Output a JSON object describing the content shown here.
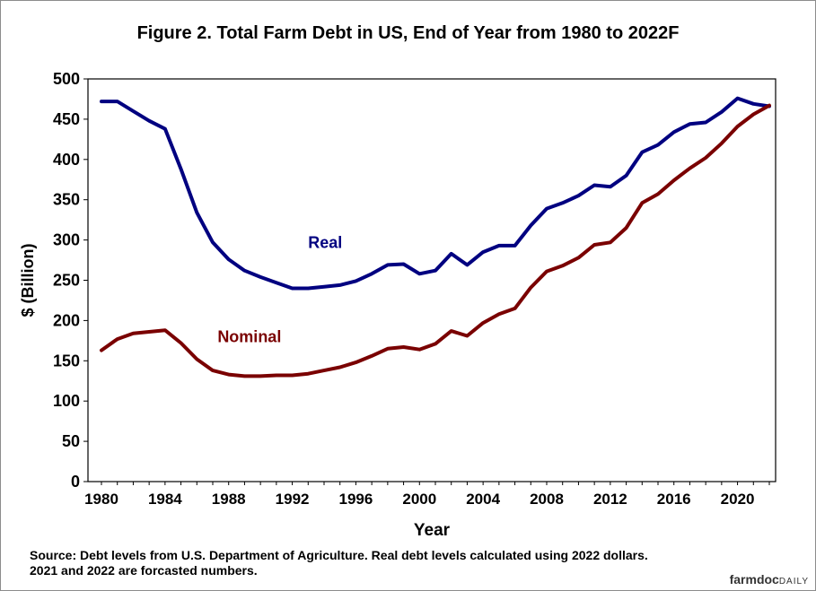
{
  "chart_data": {
    "type": "line",
    "title": "Figure  2. Total Farm Debt in US, End of Year from 1980 to 2022F",
    "xlabel": "Year",
    "ylabel": "$ (Billion)",
    "xlim": [
      1980,
      2022
    ],
    "ylim": [
      0,
      500
    ],
    "x_ticks": [
      "1980",
      "1984",
      "1988",
      "1992",
      "1996",
      "2000",
      "2004",
      "2008",
      "2012",
      "2016",
      "2020"
    ],
    "y_ticks": [
      "0",
      "50",
      "100",
      "150",
      "200",
      "250",
      "300",
      "350",
      "400",
      "450",
      "500"
    ],
    "grid": false,
    "legend": "inline labels",
    "x": [
      1980,
      1981,
      1982,
      1983,
      1984,
      1985,
      1986,
      1987,
      1988,
      1989,
      1990,
      1991,
      1992,
      1993,
      1994,
      1995,
      1996,
      1997,
      1998,
      1999,
      2000,
      2001,
      2002,
      2003,
      2004,
      2005,
      2006,
      2007,
      2008,
      2009,
      2010,
      2011,
      2012,
      2013,
      2014,
      2015,
      2016,
      2017,
      2018,
      2019,
      2020,
      2021,
      2022
    ],
    "series": [
      {
        "name": "Real",
        "color": "#000080",
        "values": [
          472,
          472,
          460,
          448,
          438,
          388,
          334,
          297,
          276,
          262,
          254,
          247,
          240,
          240,
          242,
          244,
          249,
          258,
          269,
          270,
          258,
          262,
          283,
          269,
          285,
          293,
          293,
          318,
          339,
          346,
          355,
          368,
          366,
          380,
          409,
          418,
          434,
          444,
          446,
          459,
          476,
          469,
          466
        ]
      },
      {
        "name": "Nominal",
        "color": "#7a0000",
        "values": [
          163,
          177,
          184,
          186,
          188,
          172,
          152,
          138,
          133,
          131,
          131,
          132,
          132,
          134,
          138,
          142,
          148,
          156,
          165,
          167,
          164,
          171,
          187,
          181,
          197,
          208,
          215,
          241,
          261,
          268,
          278,
          294,
          297,
          315,
          346,
          357,
          374,
          389,
          402,
          420,
          441,
          456,
          467
        ]
      }
    ],
    "annotations": [
      "Real",
      "Nominal"
    ]
  },
  "source_line1": "Source: Debt levels from U.S. Department of Agriculture.  Real debt levels calculated using 2022 dollars.",
  "source_line2": "2021 and 2022 are forcasted numbers.",
  "brand": {
    "part1": "farmdoc",
    "part2": "DAILY"
  }
}
